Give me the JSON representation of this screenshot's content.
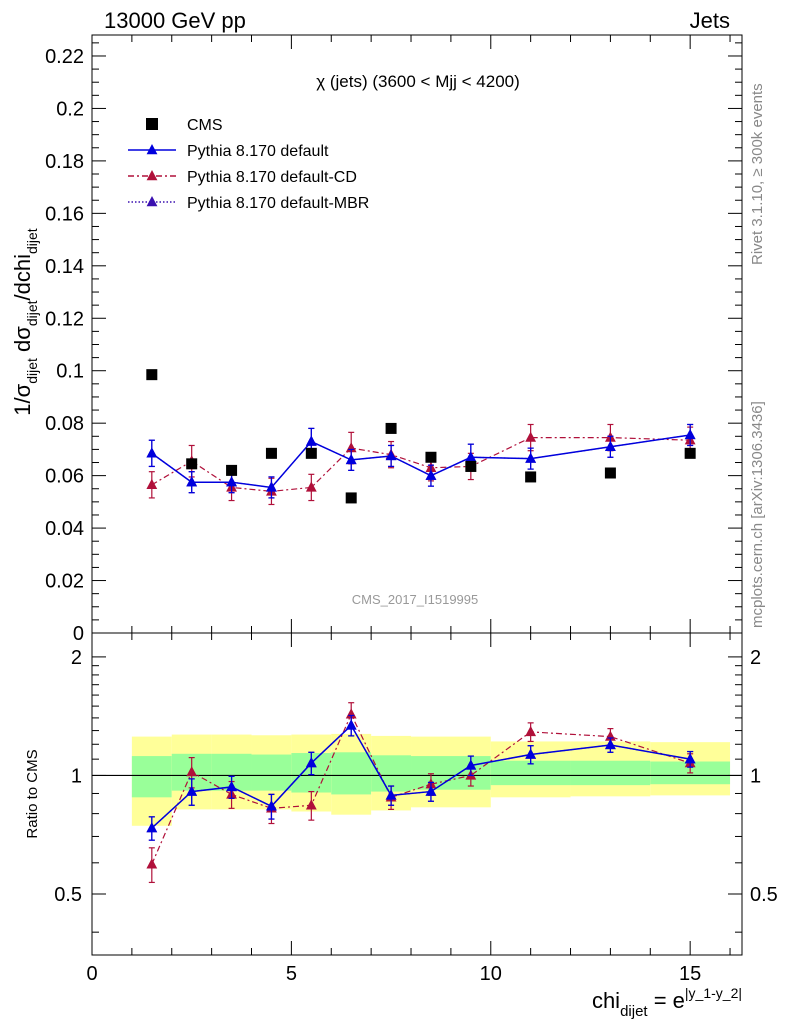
{
  "header": {
    "left": "13000 GeV pp",
    "right": "Jets"
  },
  "side_labels": {
    "rivet": "Rivet 3.1.10, ≥ 300k events",
    "mcplots": "mcplots.cern.ch [arXiv:1306.3436]"
  },
  "colors": {
    "cms": "#000000",
    "default": "#0000dd",
    "cd": "#b0103a",
    "mbr": "#3a10b0",
    "band_yellow": "#ffff99",
    "band_green": "#99ff99"
  },
  "chart_data": [
    {
      "type": "scatter",
      "title": "χ (jets) (3600 < Mjj < 4200)",
      "watermark": "CMS_2017_I1519995",
      "ylabel_parts": {
        "a": "1/σ",
        "a_sub": "dijet",
        "b": " dσ",
        "b_sub": "dijet",
        "c": "/dchi",
        "c_sub": "dijet"
      },
      "xlim": [
        0,
        16.3
      ],
      "ylim": [
        0,
        0.228
      ],
      "yticks": [
        0,
        0.02,
        0.04,
        0.06,
        0.08,
        0.1,
        0.12,
        0.14,
        0.16,
        0.18,
        0.2,
        0.22
      ],
      "ytick_labels": [
        "0",
        "0.02",
        "0.04",
        "0.06",
        "0.08",
        "0.1",
        "0.12",
        "0.14",
        "0.16",
        "0.18",
        "0.2",
        "0.22"
      ],
      "legend": [
        {
          "label": "CMS",
          "style": "square",
          "color": "#000000"
        },
        {
          "label": "Pythia 8.170 default",
          "style": "solid",
          "color": "#0000dd"
        },
        {
          "label": "Pythia 8.170 default-CD",
          "style": "dashdot",
          "color": "#b0103a"
        },
        {
          "label": "Pythia 8.170 default-MBR",
          "style": "dotted",
          "color": "#3a10b0"
        }
      ],
      "series": [
        {
          "name": "CMS",
          "x": [
            1.5,
            2.5,
            3.5,
            4.5,
            5.5,
            6.5,
            7.5,
            8.5,
            9.5,
            11,
            13,
            15
          ],
          "y": [
            0.0985,
            0.0645,
            0.062,
            0.0685,
            0.0685,
            0.0515,
            0.078,
            0.067,
            0.0635,
            0.0595,
            0.061,
            0.0685
          ]
        },
        {
          "name": "Pythia 8.170 default",
          "x": [
            1.5,
            2.5,
            3.5,
            4.5,
            5.5,
            6.5,
            7.5,
            8.5,
            9.5,
            11,
            13,
            15
          ],
          "y": [
            0.0685,
            0.0575,
            0.0575,
            0.0555,
            0.073,
            0.066,
            0.0675,
            0.06,
            0.067,
            0.0665,
            0.071,
            0.0755
          ],
          "err": [
            0.005,
            0.004,
            0.004,
            0.004,
            0.005,
            0.004,
            0.004,
            0.004,
            0.005,
            0.004,
            0.004,
            0.004
          ]
        },
        {
          "name": "Pythia 8.170 default-CD",
          "x": [
            1.5,
            2.5,
            3.5,
            4.5,
            5.5,
            6.5,
            7.5,
            8.5,
            9.5,
            11,
            13,
            15
          ],
          "y": [
            0.0565,
            0.0655,
            0.0555,
            0.054,
            0.0555,
            0.0705,
            0.068,
            0.063,
            0.0635,
            0.0745,
            0.0745,
            0.0735
          ],
          "err": [
            0.005,
            0.006,
            0.005,
            0.005,
            0.005,
            0.006,
            0.005,
            0.005,
            0.005,
            0.005,
            0.005,
            0.005
          ]
        },
        {
          "name": "Pythia 8.170 default-MBR",
          "x": [
            1.5,
            2.5,
            3.5,
            4.5,
            5.5,
            6.5,
            7.5,
            8.5,
            9.5,
            11,
            13,
            15
          ],
          "y": [
            0.0685,
            0.0575,
            0.0575,
            0.0555,
            0.073,
            0.066,
            0.0675,
            0.06,
            0.067,
            0.0665,
            0.071,
            0.0755
          ],
          "err": [
            0.005,
            0.004,
            0.004,
            0.004,
            0.005,
            0.004,
            0.004,
            0.004,
            0.005,
            0.004,
            0.004,
            0.004
          ]
        }
      ]
    },
    {
      "type": "scatter",
      "ylabel": "Ratio to CMS",
      "xlabel_parts": {
        "a": "chi",
        "a_sub": "dijet",
        "b": " = e",
        "b_sup": "|y_1-y_2|"
      },
      "xlim": [
        0,
        16.3
      ],
      "ylim": [
        0.35,
        2.3
      ],
      "xticks": [
        0,
        5,
        10,
        15
      ],
      "xtick_labels": [
        "0",
        "5",
        "10",
        "15"
      ],
      "yticks": [
        0.5,
        1,
        2
      ],
      "ytick_labels": [
        "0.5",
        "1",
        "2"
      ],
      "reference_line": 1,
      "bands": [
        {
          "x0": 1,
          "x1": 2,
          "outer": [
            0.745,
            1.255
          ],
          "inner": [
            0.88,
            1.12
          ]
        },
        {
          "x0": 2,
          "x1": 3,
          "outer": [
            0.82,
            1.27
          ],
          "inner": [
            0.915,
            1.135
          ]
        },
        {
          "x0": 3,
          "x1": 4,
          "outer": [
            0.82,
            1.27
          ],
          "inner": [
            0.915,
            1.135
          ]
        },
        {
          "x0": 4,
          "x1": 5,
          "outer": [
            0.82,
            1.265
          ],
          "inner": [
            0.915,
            1.13
          ]
        },
        {
          "x0": 5,
          "x1": 6,
          "outer": [
            0.81,
            1.27
          ],
          "inner": [
            0.905,
            1.14
          ]
        },
        {
          "x0": 6,
          "x1": 7,
          "outer": [
            0.795,
            1.275
          ],
          "inner": [
            0.895,
            1.145
          ]
        },
        {
          "x0": 7,
          "x1": 8,
          "outer": [
            0.815,
            1.26
          ],
          "inner": [
            0.91,
            1.125
          ]
        },
        {
          "x0": 8,
          "x1": 10,
          "outer": [
            0.83,
            1.255
          ],
          "inner": [
            0.92,
            1.12
          ]
        },
        {
          "x0": 10,
          "x1": 12,
          "outer": [
            0.88,
            1.22
          ],
          "inner": [
            0.945,
            1.09
          ]
        },
        {
          "x0": 12,
          "x1": 14,
          "outer": [
            0.885,
            1.22
          ],
          "inner": [
            0.945,
            1.09
          ]
        },
        {
          "x0": 14,
          "x1": 16,
          "outer": [
            0.89,
            1.215
          ],
          "inner": [
            0.95,
            1.085
          ]
        }
      ],
      "series": [
        {
          "name": "Pythia 8.170 default",
          "x": [
            1.5,
            2.5,
            3.5,
            4.5,
            5.5,
            6.5,
            7.5,
            8.5,
            9.5,
            11,
            13,
            15
          ],
          "y": [
            0.735,
            0.91,
            0.935,
            0.835,
            1.075,
            1.34,
            0.89,
            0.91,
            1.06,
            1.13,
            1.195,
            1.1
          ],
          "err": [
            0.05,
            0.07,
            0.06,
            0.06,
            0.07,
            0.08,
            0.05,
            0.05,
            0.06,
            0.06,
            0.05,
            0.05
          ]
        },
        {
          "name": "Pythia 8.170 default-CD",
          "x": [
            1.5,
            2.5,
            3.5,
            4.5,
            5.5,
            6.5,
            7.5,
            8.5,
            9.5,
            11,
            13,
            15
          ],
          "y": [
            0.595,
            1.02,
            0.895,
            0.825,
            0.84,
            1.43,
            0.88,
            0.95,
            1.0,
            1.29,
            1.255,
            1.075
          ],
          "err": [
            0.06,
            0.09,
            0.07,
            0.07,
            0.07,
            0.1,
            0.06,
            0.06,
            0.06,
            0.07,
            0.06,
            0.06
          ]
        },
        {
          "name": "Pythia 8.170 default-MBR",
          "x": [
            1.5,
            2.5,
            3.5,
            4.5,
            5.5,
            6.5,
            7.5,
            8.5,
            9.5,
            11,
            13,
            15
          ],
          "y": [
            0.735,
            0.91,
            0.935,
            0.835,
            1.075,
            1.34,
            0.89,
            0.91,
            1.06,
            1.13,
            1.195,
            1.1
          ],
          "err": [
            0.05,
            0.07,
            0.06,
            0.06,
            0.07,
            0.08,
            0.05,
            0.05,
            0.06,
            0.06,
            0.05,
            0.05
          ]
        }
      ]
    }
  ]
}
